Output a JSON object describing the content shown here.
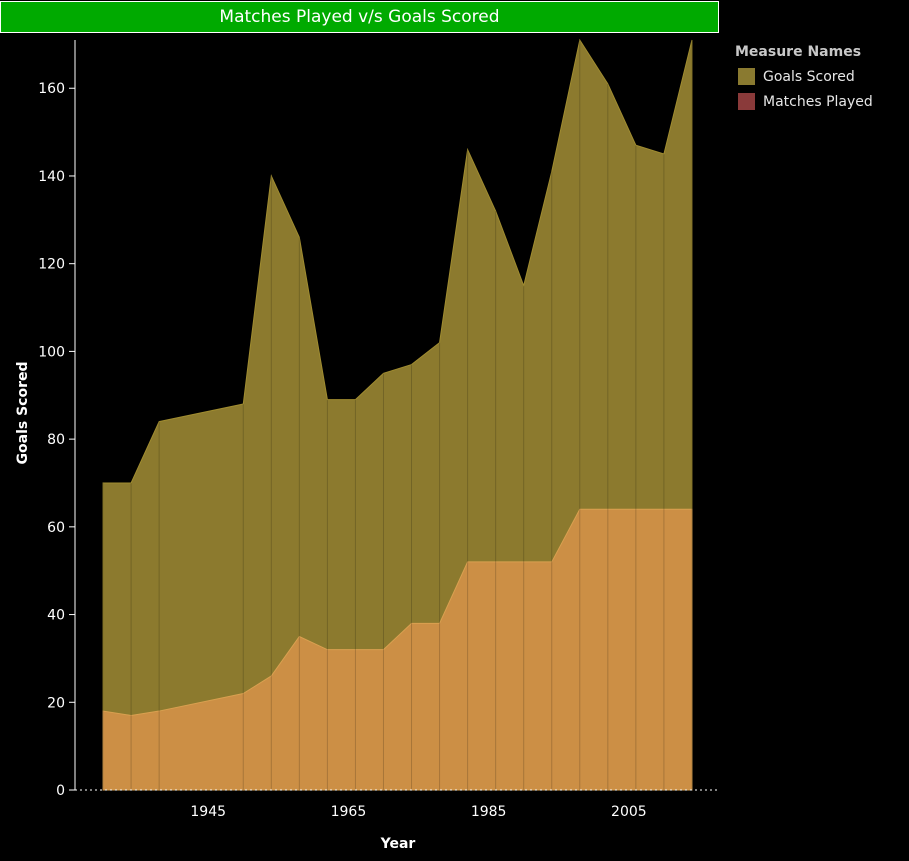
{
  "title": "Matches Played v/s Goals Scored",
  "legend": {
    "title": "Measure Names",
    "items": [
      {
        "label": "Goals Scored",
        "color": "#8a7a30"
      },
      {
        "label": "Matches Played",
        "color": "#8a3a3a"
      }
    ]
  },
  "chart_data": {
    "type": "area",
    "title": "Matches Played v/s Goals Scored",
    "xlabel": "Year",
    "ylabel": "Goals Scored",
    "x": [
      1930,
      1934,
      1938,
      1950,
      1954,
      1958,
      1962,
      1966,
      1970,
      1974,
      1978,
      1982,
      1986,
      1990,
      1994,
      1998,
      2002,
      2006,
      2010,
      2014
    ],
    "xticks": [
      1945,
      1965,
      1985,
      2005
    ],
    "yticks": [
      0,
      20,
      40,
      60,
      80,
      100,
      120,
      140,
      160
    ],
    "ylim": [
      0,
      171
    ],
    "xlim": [
      1926,
      2018
    ],
    "series": [
      {
        "name": "Goals Scored",
        "color": "#8c7a2e",
        "values": [
          70,
          70,
          84,
          88,
          140,
          126,
          89,
          89,
          95,
          97,
          102,
          146,
          132,
          115,
          141,
          171,
          161,
          147,
          145,
          171
        ]
      },
      {
        "name": "Matches Played",
        "color": "#cc8f45",
        "values": [
          18,
          17,
          18,
          22,
          26,
          35,
          32,
          32,
          32,
          38,
          38,
          52,
          52,
          52,
          52,
          64,
          64,
          64,
          64,
          64
        ]
      }
    ],
    "grid": false,
    "legend_position": "top-right"
  }
}
